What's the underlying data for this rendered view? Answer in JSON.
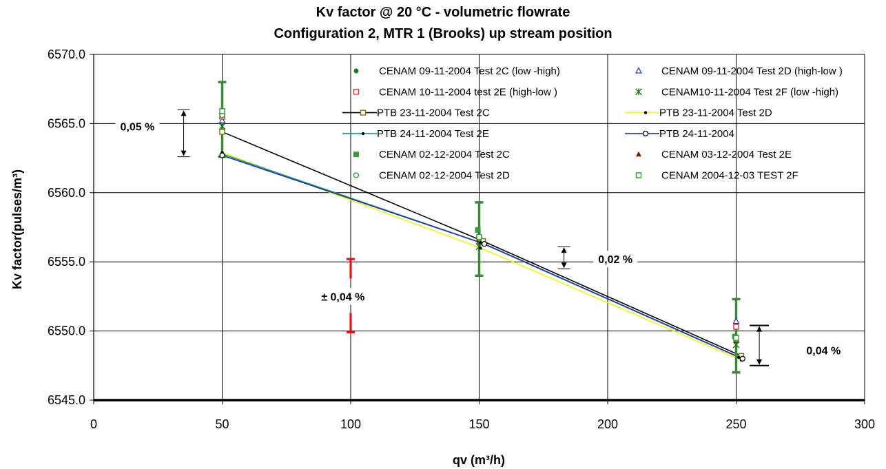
{
  "chart_data": {
    "type": "scatter",
    "title": "Kv factor @ 20 °C - volumetric flowrate",
    "subtitle": "Configuration 2, MTR 1 (Brooks) up stream position",
    "xlabel": "qv (m³/h)",
    "ylabel": "Kv factor(pulses/m³)",
    "xlim": [
      0,
      300
    ],
    "ylim": [
      6545,
      6570
    ],
    "xticks": [
      0,
      50,
      100,
      150,
      200,
      250,
      300
    ],
    "yticks": [
      6545,
      6550,
      6555,
      6560,
      6565,
      6570
    ],
    "xtick_labels": [
      "0",
      "50",
      "100",
      "150",
      "200",
      "250",
      "300"
    ],
    "ytick_labels": [
      "6545.0",
      "6550.0",
      "6555.0",
      "6560.0",
      "6565.0",
      "6570.0"
    ],
    "grid": true,
    "legend_position": "top-right",
    "series": [
      {
        "name": "CENAM 09-11-2004 Test 2C (low -high)",
        "marker": "dot",
        "color": "#1a7a1a",
        "line": false,
        "x": [
          50,
          150,
          250
        ],
        "y": [
          6565.7,
          6556.4,
          6549.2
        ]
      },
      {
        "name": "CENAM 09-11-2004 Test 2D (high-low )",
        "marker": "triangle-open",
        "color": "#2233cc",
        "line": false,
        "x": [
          50,
          150,
          250
        ],
        "y": [
          6565.2,
          6556.9,
          6550.7
        ]
      },
      {
        "name": "CENAM 10-11-2004 test 2E (high-low )",
        "marker": "square-open",
        "color": "#e03030",
        "line": false,
        "x": [
          50,
          150,
          250
        ],
        "y": [
          6565.5,
          6556.6,
          6550.3
        ]
      },
      {
        "name": "CENAM10-11-2004 Test 2F (low -high)",
        "marker": "star",
        "color": "#1a7a1a",
        "line": false,
        "x": [
          50,
          150,
          250
        ],
        "y": [
          6564.8,
          6556.1,
          6549.0
        ]
      },
      {
        "name": "PTB 23-11-2004 Test 2C",
        "marker": "square-open",
        "color": "#000000",
        "markerColor": "#8a7000",
        "line": true,
        "x": [
          50,
          151.5,
          252
        ],
        "y": [
          6564.4,
          6556.5,
          6548.2
        ]
      },
      {
        "name": "PTB 23-11-2004 Test 2D",
        "marker": "dot-small",
        "color": "#f5f500",
        "markerColor": "#000000",
        "line": true,
        "x": [
          50,
          150.5,
          252
        ],
        "y": [
          6562.9,
          6556.0,
          6547.9
        ]
      },
      {
        "name": "PTB 24-11-2004 Test 2E",
        "marker": "dot-small",
        "color": "#159a8a",
        "markerColor": "#000000",
        "line": true,
        "x": [
          50,
          150.5,
          251
        ],
        "y": [
          6562.8,
          6556.4,
          6548.1
        ]
      },
      {
        "name": "PTB 24-11-2004",
        "marker": "dot-open",
        "color": "#2233aa",
        "markerColor": "#000000",
        "line": true,
        "x": [
          50,
          152,
          252.5
        ],
        "y": [
          6562.7,
          6556.3,
          6548.0
        ]
      },
      {
        "name": "CENAM 02-12-2004 Test 2C",
        "marker": "square-filled",
        "color": "#3a9a3a",
        "line": false,
        "x": [
          50,
          149.5,
          249.5
        ],
        "y": [
          6565.9,
          6557.3,
          6549.6
        ]
      },
      {
        "name": "CENAM 03-12-2004 Test 2E",
        "marker": "triangle-filled",
        "color": "#7a1a00",
        "line": false,
        "x": [
          50,
          150,
          250
        ],
        "y": [
          6565.6,
          6556.6,
          6549.3
        ]
      },
      {
        "name": "CENAM 02-12-2004 Test 2D",
        "marker": "dot-open",
        "color": "#1a9a1a",
        "line": false,
        "x": [
          50,
          150,
          250
        ],
        "y": [
          6565.6,
          6556.7,
          6549.4
        ]
      },
      {
        "name": "CENAM 2004-12-03 TEST 2F",
        "marker": "square-open",
        "color": "#2a9a2a",
        "line": false,
        "x": [
          50,
          150,
          250
        ],
        "y": [
          6565.9,
          6556.8,
          6549.5
        ]
      }
    ],
    "error_bars": [
      {
        "x": 50,
        "y": 6565.3,
        "low": 6562.6,
        "high": 6568.0,
        "color": "#3a8a3a"
      },
      {
        "x": 150,
        "y": 6556.65,
        "low": 6554.0,
        "high": 6559.3,
        "color": "#3a8a3a"
      },
      {
        "x": 250,
        "y": 6549.65,
        "low": 6547.0,
        "high": 6552.3,
        "color": "#3a8a3a"
      },
      {
        "x": 100,
        "y": 6552.5,
        "low": 6549.9,
        "high": 6555.2,
        "color": "#ee1111",
        "gap": [
          6551.3,
          6553.8
        ]
      }
    ],
    "annotations": [
      {
        "text": "0,05 %",
        "arrow_x": 35,
        "arrow_low": 6562.6,
        "arrow_high": 6566.0,
        "text_x": 17,
        "text_y": 6564.8
      },
      {
        "text": "0,02 %",
        "arrow_x": 183,
        "arrow_low": 6554.5,
        "arrow_high": 6556.1,
        "text_x": 203,
        "text_y": 6555.2
      },
      {
        "text": "0,04 %",
        "arrow_x": 259,
        "arrow_low": 6547.5,
        "arrow_high": 6550.4,
        "text_x": 284,
        "text_y": 6548.6
      },
      {
        "text": "± 0,04 %",
        "arrow_x": null,
        "text_x": 97,
        "text_y": 6552.5
      }
    ]
  }
}
